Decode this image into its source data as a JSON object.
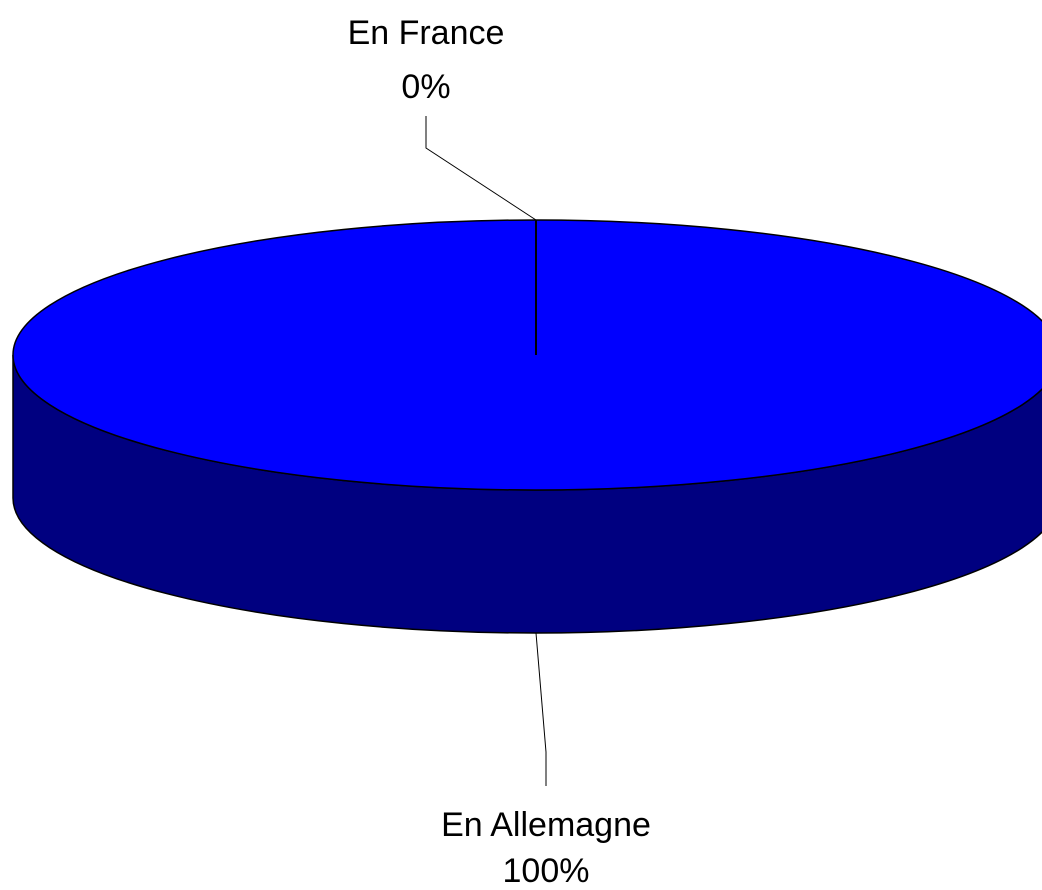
{
  "chart_data": {
    "type": "pie",
    "style": "3d",
    "slices": [
      {
        "label": "En France",
        "value": 0,
        "value_label": "0%"
      },
      {
        "label": "En Allemagne",
        "value": 100,
        "value_label": "100%"
      }
    ],
    "colors": {
      "top": "#0000ff",
      "side": "#000080",
      "outline": "#000000",
      "leader": "#000000",
      "background": "#ffffff"
    }
  }
}
